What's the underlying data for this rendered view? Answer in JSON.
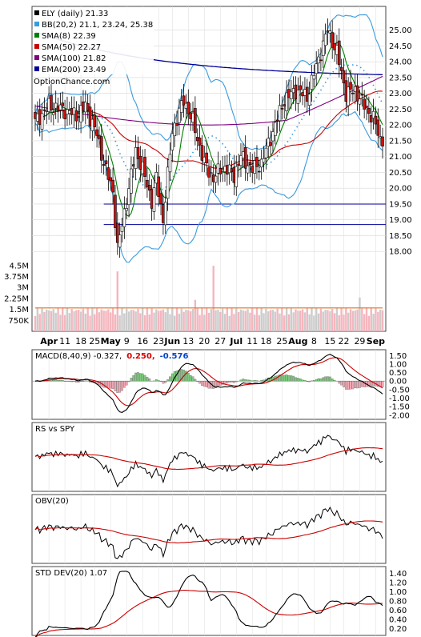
{
  "chart_data": [
    {
      "type": "candlestick",
      "legend": [
        {
          "label": "ELY (daily) 21.33",
          "color": "#000000"
        },
        {
          "label": "BB(20,2) 21.1, 23.24, 25.38",
          "color": "#3a9be0"
        },
        {
          "label": "SMA(8) 22.39",
          "color": "#008000"
        },
        {
          "label": "SMA(50) 22.27",
          "color": "#cc0000"
        },
        {
          "label": "SMA(100) 21.82",
          "color": "#800080"
        },
        {
          "label": "EMA(200) 23.49",
          "color": "#000099"
        }
      ],
      "watermark": "OptionChance.com",
      "y_ticks": [
        "25.00",
        "24.50",
        "24.00",
        "23.50",
        "23.00",
        "22.50",
        "22.00",
        "21.50",
        "21.00",
        "20.50",
        "20.00",
        "19.50",
        "19.00",
        "18.50",
        "18.00"
      ],
      "ylim": [
        17.6,
        25.6
      ],
      "x_ticks": [
        "Apr",
        "11",
        "18",
        "25",
        "May",
        "9",
        "16",
        "23",
        "Jun",
        "13",
        "20",
        "27",
        "Jul",
        "11",
        "18",
        "25",
        "Aug",
        "8",
        "15",
        "22",
        "29",
        "Sep"
      ],
      "bold_ticks": [
        "Apr",
        "May",
        "Jun",
        "Jul",
        "Aug",
        "Sep"
      ],
      "support_lines": [
        19.5,
        18.85
      ],
      "close_anchors": [
        [
          0,
          22.1
        ],
        [
          6,
          22.6
        ],
        [
          12,
          22.5
        ],
        [
          18,
          22.3
        ],
        [
          22,
          22.6
        ],
        [
          27,
          21.7
        ],
        [
          30,
          20.8
        ],
        [
          34,
          19.9
        ],
        [
          36,
          18.1
        ],
        [
          40,
          19.6
        ],
        [
          44,
          21.2
        ],
        [
          47,
          20.6
        ],
        [
          51,
          19.6
        ],
        [
          53,
          20.3
        ],
        [
          56,
          19.0
        ],
        [
          60,
          21.8
        ],
        [
          65,
          22.8
        ],
        [
          69,
          22.1
        ],
        [
          74,
          20.8
        ],
        [
          78,
          20.3
        ],
        [
          82,
          20.7
        ],
        [
          87,
          20.4
        ],
        [
          90,
          21.0
        ],
        [
          95,
          20.6
        ],
        [
          99,
          20.8
        ],
        [
          104,
          21.8
        ],
        [
          109,
          22.8
        ],
        [
          114,
          23.1
        ],
        [
          119,
          22.9
        ],
        [
          124,
          24.1
        ],
        [
          128,
          25.0
        ],
        [
          132,
          24.3
        ],
        [
          136,
          23.0
        ],
        [
          140,
          23.1
        ],
        [
          144,
          22.6
        ],
        [
          148,
          22.2
        ],
        [
          152,
          21.33
        ]
      ],
      "volume": {
        "y_ticks": [
          "4.5M",
          "3.75M",
          "3M",
          "2.25M",
          "1.5M",
          "750K"
        ],
        "ylim": [
          0,
          4.6
        ],
        "average": 1.6
      }
    },
    {
      "type": "line",
      "legend": [
        {
          "label": "MACD(8,40,9) -0.327,",
          "color": "#000000"
        },
        {
          "label": "0.250,",
          "color": "#dd0000"
        },
        {
          "label": "-0.576",
          "color": "#0044cc"
        }
      ],
      "y_ticks": [
        "1.50",
        "1.00",
        "0.50",
        "0.00",
        "-0.50",
        "-1.00",
        "-1.50",
        "-2.00"
      ],
      "ylim": [
        -2.1,
        1.7
      ]
    },
    {
      "type": "line",
      "legend": [
        {
          "label": "RS vs SPY",
          "color": "#000000"
        }
      ]
    },
    {
      "type": "line",
      "legend": [
        {
          "label": "OBV(20)",
          "color": "#000000"
        }
      ]
    },
    {
      "type": "line",
      "legend": [
        {
          "label": "STD DEV(20) 1.07",
          "color": "#000000"
        }
      ],
      "y_ticks": [
        "1.40",
        "1.20",
        "1.00",
        "0.80",
        "0.60",
        "0.40",
        "0.20"
      ],
      "ylim": [
        0.1,
        1.5
      ]
    }
  ]
}
